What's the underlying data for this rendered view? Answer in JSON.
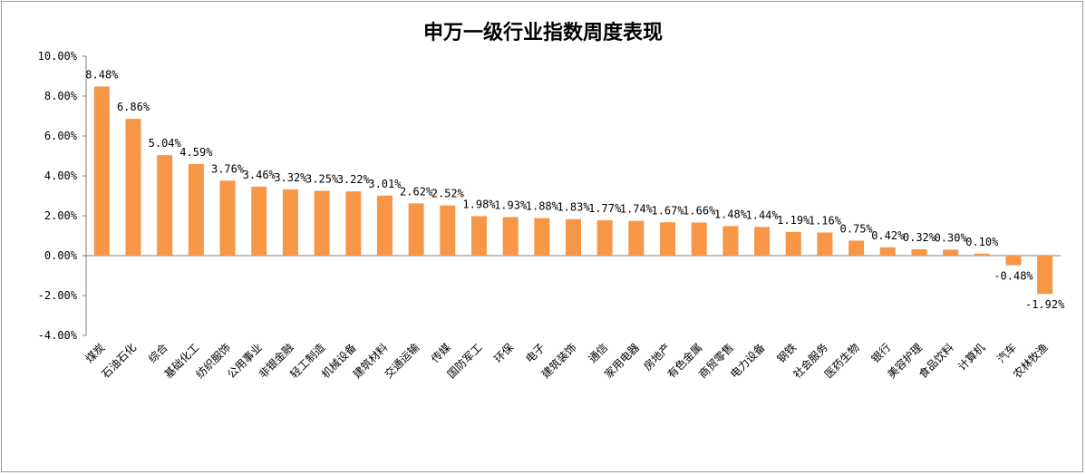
{
  "chart_data": {
    "type": "bar",
    "title": "申万一级行业指数周度表现",
    "categories": [
      "煤炭",
      "石油石化",
      "综合",
      "基础化工",
      "纺织服饰",
      "公用事业",
      "非银金融",
      "轻工制造",
      "机械设备",
      "建筑材料",
      "交通运输",
      "传媒",
      "国防军工",
      "环保",
      "电子",
      "建筑装饰",
      "通信",
      "家用电器",
      "房地产",
      "有色金属",
      "商贸零售",
      "电力设备",
      "钢铁",
      "社会服务",
      "医药生物",
      "银行",
      "美容护理",
      "食品饮料",
      "计算机",
      "汽车",
      "农林牧渔"
    ],
    "values": [
      8.48,
      6.86,
      5.04,
      4.59,
      3.76,
      3.46,
      3.32,
      3.25,
      3.22,
      3.01,
      2.62,
      2.52,
      1.98,
      1.93,
      1.88,
      1.83,
      1.77,
      1.74,
      1.67,
      1.66,
      1.48,
      1.44,
      1.19,
      1.16,
      0.75,
      0.42,
      0.32,
      0.3,
      0.1,
      -0.48,
      -1.92
    ],
    "value_labels": [
      "8.48%",
      "6.86%",
      "5.04%",
      "4.59%",
      "3.76%",
      "3.46%",
      "3.32%",
      "3.25%",
      "3.22%",
      "3.01%",
      "2.62%",
      "2.52%",
      "1.98%",
      "1.93%",
      "1.88%",
      "1.83%",
      "1.77%",
      "1.74%",
      "1.67%",
      "1.66%",
      "1.48%",
      "1.44%",
      "1.19%",
      "1.16%",
      "0.75%",
      "0.42%",
      "0.32%",
      "0.30%",
      "0.10%",
      "-0.48%",
      "-1.92%"
    ],
    "yticks": [
      "10.00%",
      "8.00%",
      "6.00%",
      "4.00%",
      "2.00%",
      "0.00%",
      "-2.00%",
      "-4.00%"
    ],
    "ylim": [
      -4,
      10
    ],
    "bar_color": "#f79646",
    "grid": false,
    "legend": "none"
  }
}
